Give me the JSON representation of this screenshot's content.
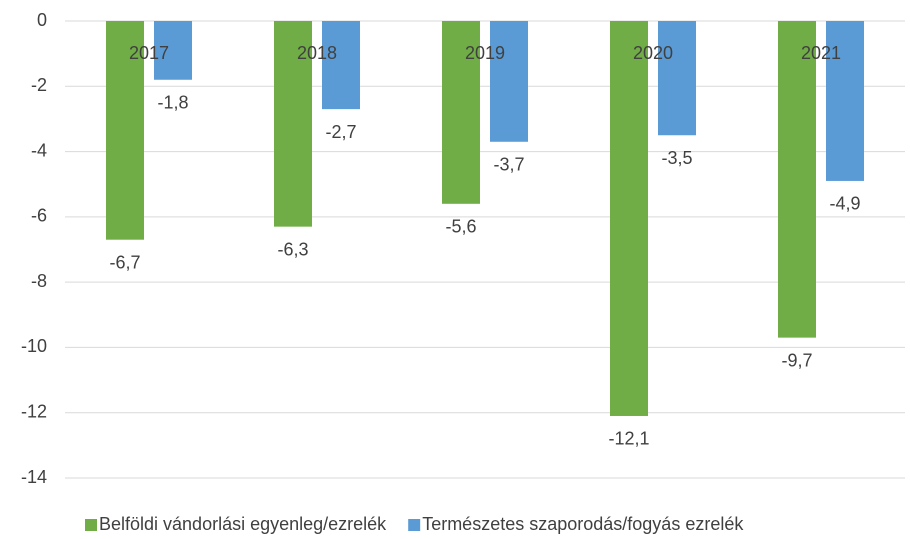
{
  "chart_data": {
    "type": "bar",
    "categories": [
      "2017",
      "2018",
      "2019",
      "2020",
      "2021"
    ],
    "series": [
      {
        "name": "Belföldi vándorlási egyenleg/ezrelék",
        "color": "#70ad47",
        "values": [
          -6.7,
          -6.3,
          -5.6,
          -12.1,
          -9.7
        ],
        "value_labels": [
          "-6,7",
          "-6,3",
          "-5,6",
          "-12,1",
          "-9,7"
        ]
      },
      {
        "name": "Természetes szaporodás/fogyás ezrelék",
        "color": "#5b9bd5",
        "values": [
          -1.8,
          -2.7,
          -3.7,
          -3.5,
          -4.9
        ],
        "value_labels": [
          "-1,8",
          "-2,7",
          "-3,7",
          "-3,5",
          "-4,9"
        ]
      }
    ],
    "ylim": [
      -14,
      0
    ],
    "yticks": [
      0,
      -2,
      -4,
      -6,
      -8,
      -10,
      -12,
      -14
    ],
    "grid": true,
    "legend": "bottom"
  }
}
